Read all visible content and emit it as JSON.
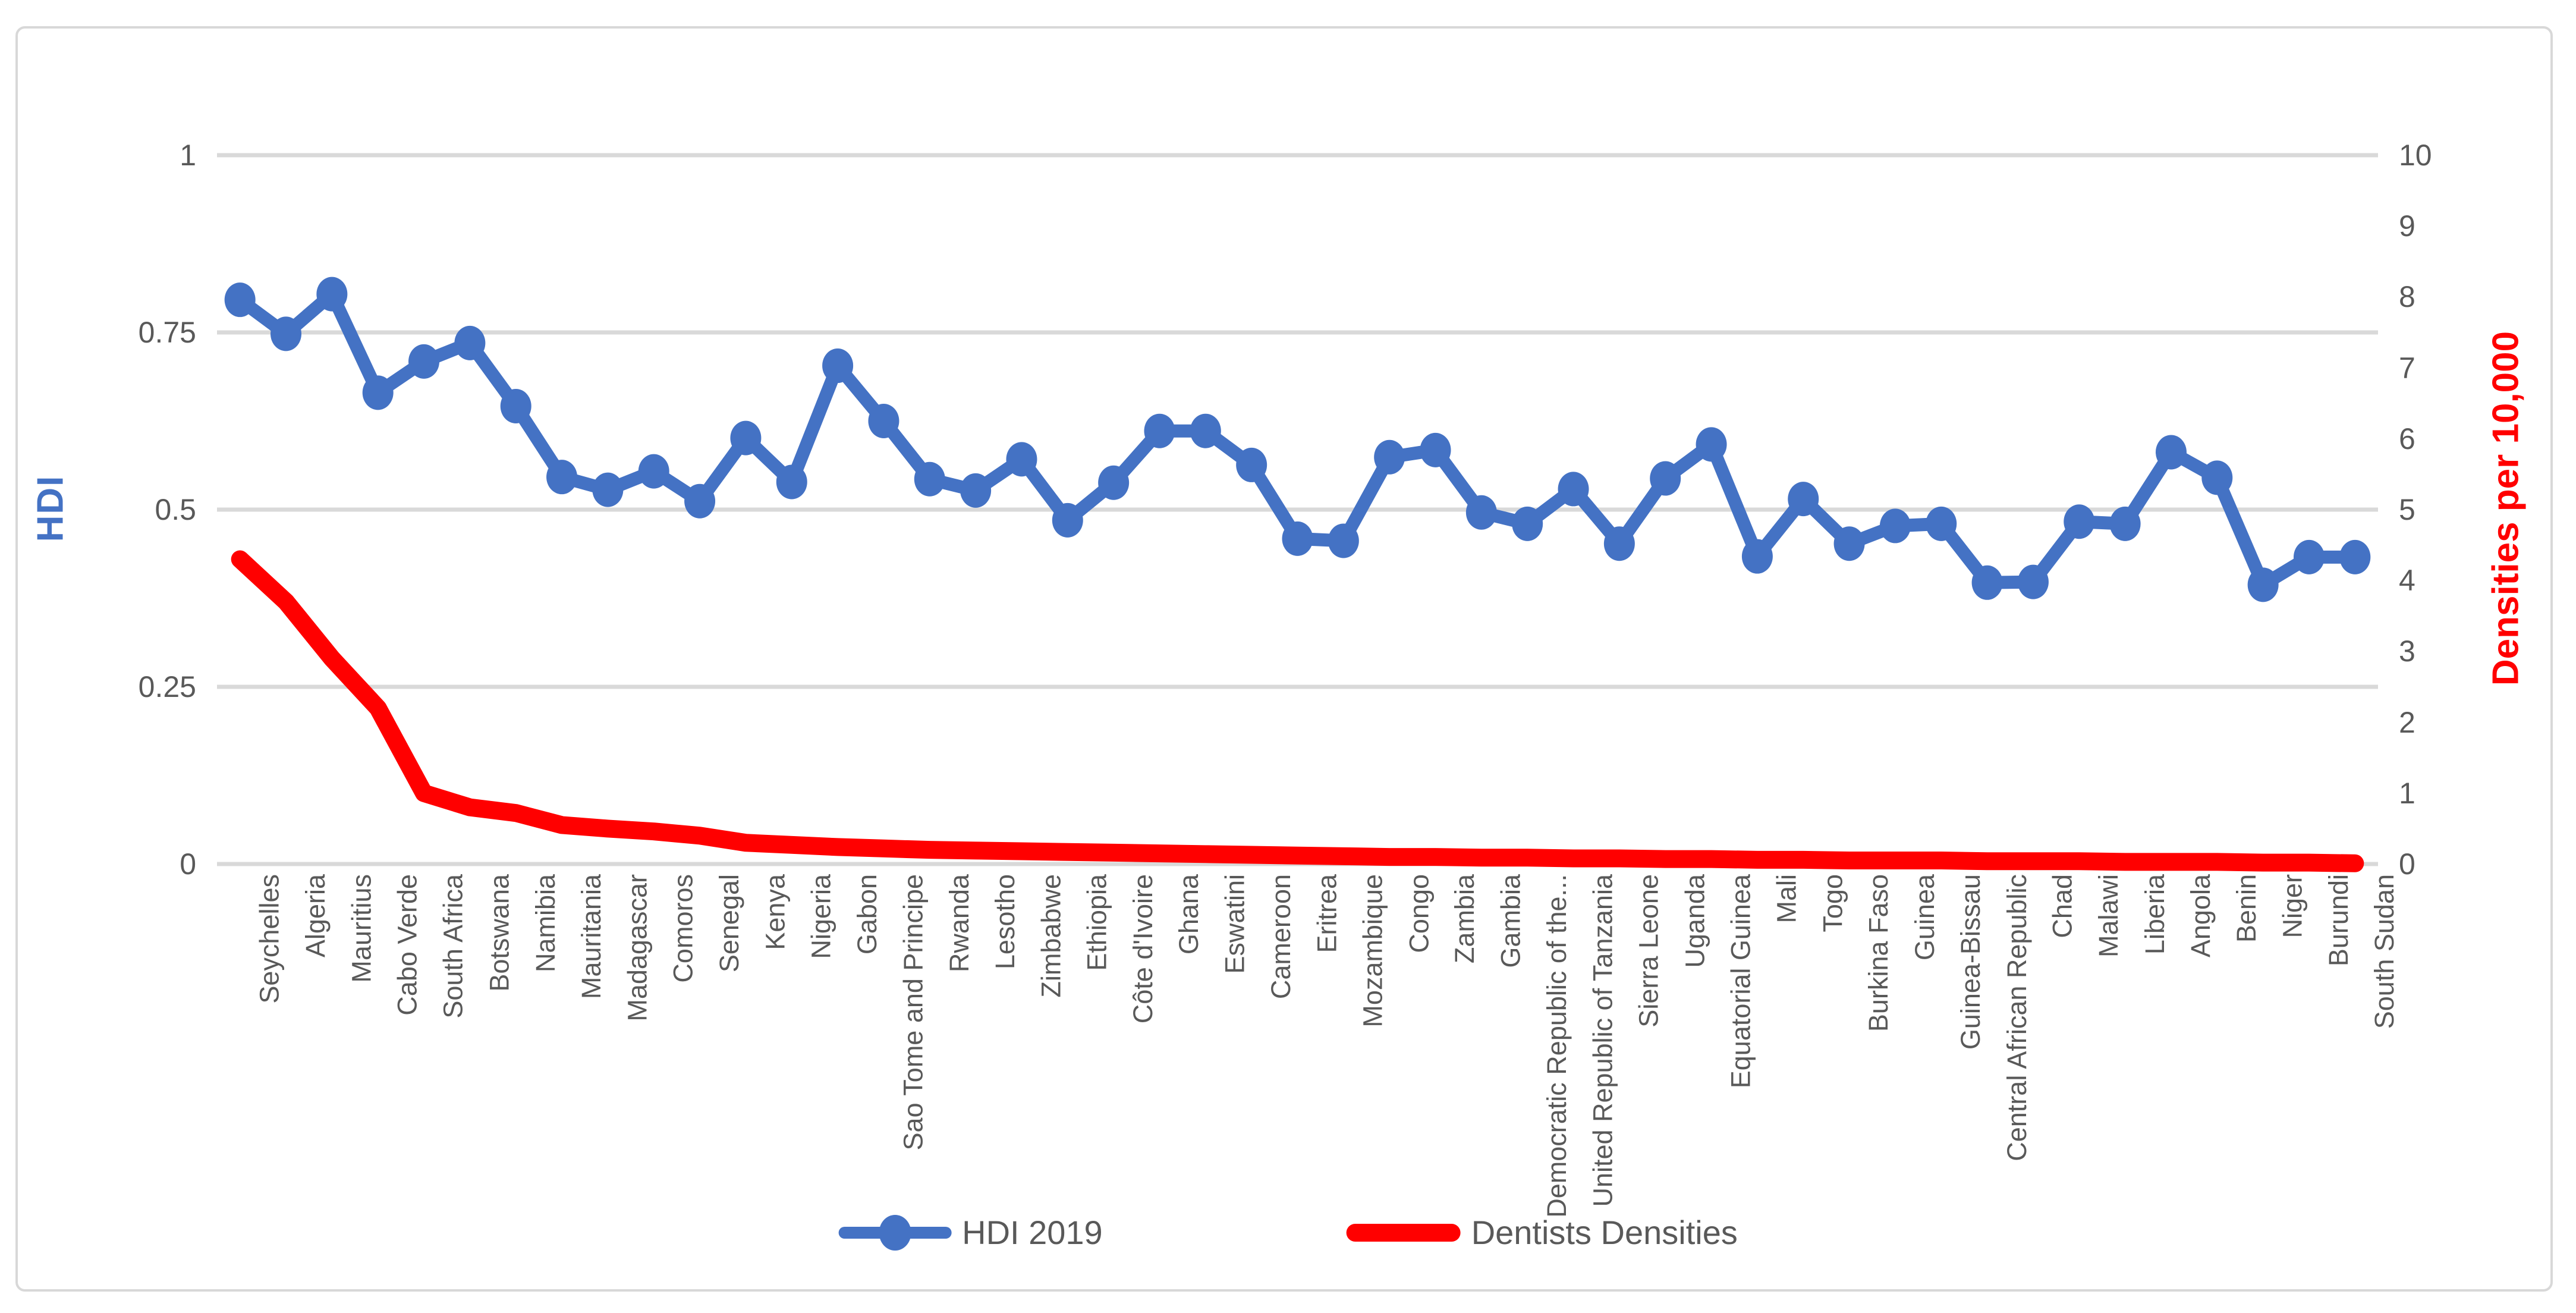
{
  "window": {
    "background": "#FFFFFF",
    "frame_border_color": "#D8D8D8"
  },
  "colors": {
    "hdi_series": "#4472C4",
    "dentists_series": "#FF0000",
    "gridline": "#D9D9D9",
    "tick_text": "#595959"
  },
  "chart_data": {
    "type": "line",
    "title": "",
    "grid": {
      "show": true,
      "orientation": "horizontal",
      "color": "#D9D9D9"
    },
    "legend_position": "bottom",
    "categories": [
      "Seychelles",
      "Algeria",
      "Mauritius",
      "Cabo Verde",
      "South Africa",
      "Botswana",
      "Namibia",
      "Mauritania",
      "Madagascar",
      "Comoros",
      "Senegal",
      "Kenya",
      "Nigeria",
      "Gabon",
      "Sao Tome and Principe",
      "Rwanda",
      "Lesotho",
      "Zimbabwe",
      "Ethiopia",
      "Côte d'Ivoire",
      "Ghana",
      "Eswatini",
      "Cameroon",
      "Eritrea",
      "Mozambique",
      "Congo",
      "Zambia",
      "Gambia",
      "Democratic Republic of the...",
      "United Republic of Tanzania",
      "Sierra Leone",
      "Uganda",
      "Equatorial Guinea",
      "Mali",
      "Togo",
      "Burkina Faso",
      "Guinea",
      "Guinea-Bissau",
      "Central African Republic",
      "Chad",
      "Malawi",
      "Liberia",
      "Angola",
      "Benin",
      "Niger",
      "Burundi",
      "South Sudan"
    ],
    "series": [
      {
        "name": "HDI 2019",
        "axis": "left",
        "color": "#4472C4",
        "style": "line-with-circle-markers",
        "values": [
          0.796,
          0.748,
          0.804,
          0.665,
          0.709,
          0.735,
          0.646,
          0.546,
          0.528,
          0.554,
          0.512,
          0.601,
          0.539,
          0.703,
          0.625,
          0.543,
          0.527,
          0.571,
          0.485,
          0.538,
          0.611,
          0.611,
          0.563,
          0.459,
          0.456,
          0.574,
          0.584,
          0.496,
          0.48,
          0.529,
          0.452,
          0.544,
          0.592,
          0.434,
          0.515,
          0.452,
          0.477,
          0.48,
          0.397,
          0.398,
          0.483,
          0.48,
          0.581,
          0.545,
          0.394,
          0.433,
          0.433
        ]
      },
      {
        "name": "Dentists Densities",
        "axis": "right",
        "color": "#FF0000",
        "style": "thick-line",
        "values": [
          4.3,
          3.7,
          2.9,
          2.2,
          1.0,
          0.8,
          0.72,
          0.55,
          0.5,
          0.46,
          0.4,
          0.3,
          0.27,
          0.24,
          0.22,
          0.2,
          0.19,
          0.18,
          0.17,
          0.16,
          0.15,
          0.14,
          0.13,
          0.12,
          0.11,
          0.1,
          0.1,
          0.09,
          0.09,
          0.08,
          0.08,
          0.07,
          0.07,
          0.06,
          0.06,
          0.05,
          0.05,
          0.05,
          0.04,
          0.04,
          0.04,
          0.03,
          0.03,
          0.03,
          0.02,
          0.02,
          0.01
        ]
      }
    ],
    "left_axis": {
      "title": "HDI",
      "title_color": "#4472C4",
      "range": [
        0,
        1
      ],
      "ticks": [
        {
          "label": "1",
          "value": 1
        },
        {
          "label": "0.75",
          "value": 0.75
        },
        {
          "label": "0.5",
          "value": 0.5
        },
        {
          "label": "0.25",
          "value": 0.25
        },
        {
          "label": "0",
          "value": 0
        }
      ]
    },
    "right_axis": {
      "title": "Densities  per 10,000",
      "title_color": "#FF0000",
      "range": [
        0,
        10
      ],
      "ticks": [
        {
          "label": "10",
          "value": 10
        },
        {
          "label": "9",
          "value": 9
        },
        {
          "label": "8",
          "value": 8
        },
        {
          "label": "7",
          "value": 7
        },
        {
          "label": "6",
          "value": 6
        },
        {
          "label": "5",
          "value": 5
        },
        {
          "label": "4",
          "value": 4
        },
        {
          "label": "3",
          "value": 3
        },
        {
          "label": "2",
          "value": 2
        },
        {
          "label": "1",
          "value": 1
        },
        {
          "label": "0",
          "value": 0
        }
      ]
    }
  }
}
